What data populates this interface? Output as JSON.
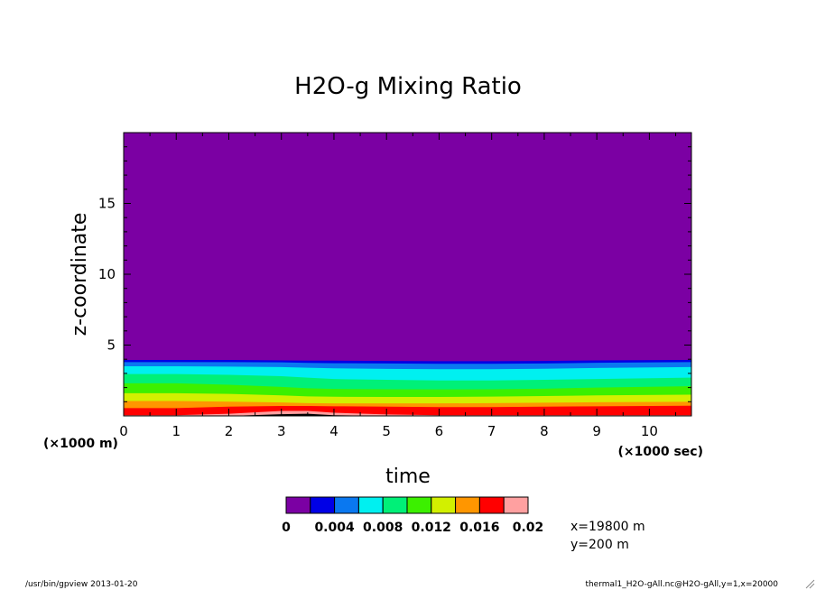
{
  "chart_data": {
    "type": "heatmap",
    "title": "H2O-g Mixing Ratio",
    "xlabel": "time",
    "ylabel": "z-coordinate",
    "x_unit_label": "(×1000 sec)",
    "y_unit_label": "(×1000 m)",
    "xlim": [
      0,
      10.8
    ],
    "ylim": [
      0,
      20
    ],
    "x_ticks": [
      0,
      1,
      2,
      3,
      4,
      5,
      6,
      7,
      8,
      9,
      10
    ],
    "x_tick_labels": [
      "0",
      "1",
      "2",
      "3",
      "4",
      "5",
      "6",
      "7",
      "8",
      "9",
      "10"
    ],
    "y_ticks": [
      5,
      10,
      15
    ],
    "y_tick_labels": [
      "5",
      "10",
      "15"
    ],
    "contour_levels": [
      0,
      0.002,
      0.004,
      0.006,
      0.008,
      0.01,
      0.012,
      0.014,
      0.016,
      0.018,
      0.02
    ],
    "colors": [
      "#7b00a3",
      "#0000e6",
      "#0a78f0",
      "#00f0f0",
      "#00f078",
      "#3cf000",
      "#d2f000",
      "#ff9600",
      "#ff0000",
      "#ffa0a0"
    ],
    "colorbar_labels": [
      "0",
      "0.004",
      "0.008",
      "0.012",
      "0.016",
      "0.02"
    ],
    "contour_boundaries_z": [
      {
        "level": 0.002,
        "z": [
          3.95,
          3.95,
          3.95,
          3.92,
          3.9,
          3.9,
          3.88,
          3.86,
          3.86,
          3.88,
          3.92,
          3.95
        ]
      },
      {
        "level": 0.004,
        "z": [
          3.8,
          3.8,
          3.8,
          3.78,
          3.74,
          3.72,
          3.7,
          3.68,
          3.68,
          3.7,
          3.75,
          3.8
        ]
      },
      {
        "level": 0.006,
        "z": [
          3.5,
          3.5,
          3.48,
          3.45,
          3.4,
          3.36,
          3.32,
          3.3,
          3.3,
          3.33,
          3.38,
          3.45
        ]
      },
      {
        "level": 0.008,
        "z": [
          2.95,
          2.95,
          2.9,
          2.8,
          2.7,
          2.6,
          2.55,
          2.5,
          2.5,
          2.55,
          2.6,
          2.7
        ]
      },
      {
        "level": 0.01,
        "z": [
          2.3,
          2.3,
          2.2,
          2.05,
          1.95,
          1.9,
          1.88,
          1.87,
          1.88,
          1.92,
          2.0,
          2.1
        ]
      },
      {
        "level": 0.012,
        "z": [
          1.6,
          1.6,
          1.55,
          1.45,
          1.38,
          1.35,
          1.34,
          1.34,
          1.36,
          1.4,
          1.45,
          1.5
        ]
      },
      {
        "level": 0.014,
        "z": [
          1.05,
          1.05,
          1.0,
          0.95,
          0.9,
          0.88,
          0.88,
          0.88,
          0.9,
          0.93,
          0.96,
          1.0
        ]
      },
      {
        "level": 0.016,
        "z": [
          0.55,
          0.55,
          0.65,
          0.7,
          0.7,
          0.68,
          0.65,
          0.62,
          0.62,
          0.65,
          0.68,
          0.72
        ]
      },
      {
        "level": 0.018,
        "z": [
          0.05,
          0.05,
          0.15,
          0.35,
          0.35,
          0.22,
          0.1,
          0.05,
          0.05,
          0.05,
          0.05,
          0.05
        ]
      },
      {
        "level": 0.02,
        "z": [
          0,
          0,
          0,
          0.12,
          0.15,
          0.05,
          0,
          0,
          0,
          0,
          0,
          0
        ]
      }
    ],
    "contour_x": [
      0,
      1,
      2,
      3,
      3.5,
      4,
      5,
      6,
      7,
      8,
      9,
      10.8
    ],
    "annotations": [
      "x=19800 m",
      "y=200 m"
    ],
    "legend": "bottom-center colorbar"
  },
  "footer": {
    "left": "/usr/bin/gpview  2013-01-20",
    "right": "thermal1_H2O-gAll.nc@H2O-gAll,y=1,x=20000"
  }
}
